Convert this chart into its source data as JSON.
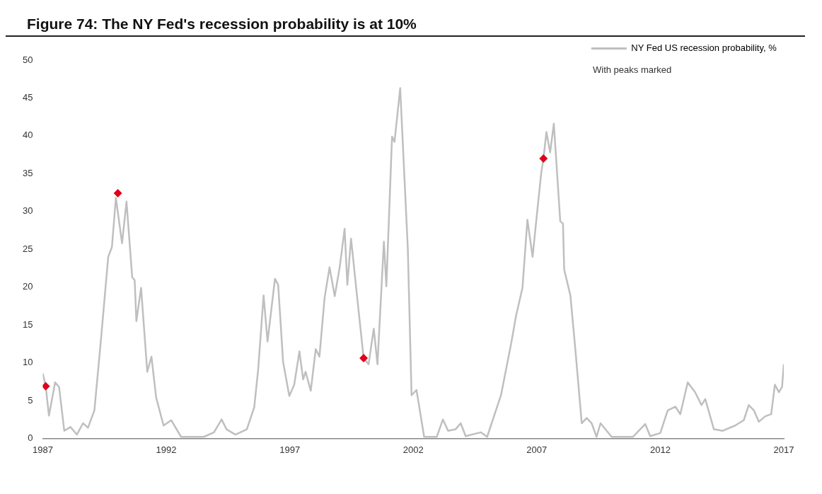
{
  "chart_data": {
    "type": "line",
    "title": "Figure 74: The NY Fed's recession probability is at 10%",
    "annotations": [
      "With peaks marked"
    ],
    "xlim": [
      1987,
      2017
    ],
    "xticks": [
      1987,
      1992,
      1997,
      2002,
      2007,
      2012,
      2017
    ],
    "ylim": [
      0,
      50
    ],
    "yticks": [
      0,
      5,
      10,
      15,
      20,
      25,
      30,
      35,
      40,
      45,
      50
    ],
    "grid": false,
    "legend": "top right",
    "series": [
      {
        "name": "NY Fed US recession probability, %",
        "color": "#bfbfbf",
        "marker": "none",
        "line_style": "solid",
        "x": [
          1987.0,
          1987.12,
          1987.25,
          1987.5,
          1987.66,
          1987.87,
          1988.12,
          1988.38,
          1988.63,
          1988.83,
          1989.09,
          1989.34,
          1989.65,
          1989.8,
          1989.96,
          1990.21,
          1990.39,
          1990.62,
          1990.72,
          1990.79,
          1990.98,
          1991.23,
          1991.4,
          1991.59,
          1991.89,
          1992.2,
          1992.6,
          1993.52,
          1993.93,
          1994.24,
          1994.44,
          1994.8,
          1995.26,
          1995.56,
          1995.72,
          1995.94,
          1996.1,
          1996.4,
          1996.53,
          1996.73,
          1996.98,
          1997.18,
          1997.39,
          1997.54,
          1997.64,
          1997.85,
          1998.05,
          1998.2,
          1998.41,
          1998.61,
          1998.82,
          1999.02,
          1999.22,
          1999.33,
          1999.48,
          1999.73,
          1999.99,
          2000.19,
          2000.4,
          2000.55,
          2000.81,
          2000.91,
          2001.14,
          2001.24,
          2001.47,
          2001.78,
          2001.93,
          2002.13,
          2002.44,
          2002.95,
          2003.2,
          2003.41,
          2003.71,
          2003.92,
          2004.12,
          2004.73,
          2004.99,
          2005.55,
          2005.96,
          2006.16,
          2006.42,
          2006.62,
          2006.83,
          2007.03,
          2007.18,
          2007.27,
          2007.39,
          2007.54,
          2007.69,
          2007.95,
          2008.06,
          2008.11,
          2008.36,
          2008.56,
          2008.82,
          2009.02,
          2009.22,
          2009.42,
          2009.58,
          2010.03,
          2010.89,
          2011.39,
          2011.59,
          2012.0,
          2012.3,
          2012.61,
          2012.81,
          2013.11,
          2013.41,
          2013.67,
          2013.82,
          2014.17,
          2014.53,
          2015.03,
          2015.38,
          2015.58,
          2015.79,
          2015.99,
          2016.24,
          2016.49,
          2016.64,
          2016.8,
          2016.93,
          2017.0
        ],
        "values": [
          8.6,
          6.9,
          3.0,
          7.4,
          6.8,
          1.0,
          1.5,
          0.5,
          2.0,
          1.4,
          3.7,
          12.5,
          24,
          25.3,
          31.8,
          25.8,
          31.3,
          21.3,
          20.9,
          15.5,
          19.9,
          8.8,
          10.8,
          5.4,
          1.7,
          2.4,
          0.2,
          0.2,
          0.8,
          2.5,
          1.2,
          0.5,
          1.2,
          4.1,
          9.1,
          18.9,
          12.8,
          21.1,
          20.3,
          10.1,
          5.6,
          7.1,
          11.5,
          7.8,
          8.8,
          6.3,
          11.8,
          10.8,
          18.6,
          22.6,
          18.8,
          22.6,
          27.7,
          20.3,
          26.4,
          18.6,
          10.6,
          9.8,
          14.5,
          9.8,
          26,
          20.1,
          39.9,
          39.2,
          46.3,
          25,
          5.7,
          6.4,
          0.2,
          0.2,
          2.5,
          1.0,
          1.2,
          2.0,
          0.3,
          0.8,
          0.2,
          5.7,
          12.5,
          16.2,
          19.9,
          28.9,
          24,
          30.4,
          35.1,
          37,
          40.5,
          37.8,
          41.6,
          28.7,
          28.4,
          22.3,
          18.9,
          11.8,
          2.0,
          2.7,
          2.0,
          0.2,
          2.0,
          0.2,
          0.2,
          1.9,
          0.3,
          0.7,
          3.7,
          4.2,
          3.2,
          7.4,
          6.1,
          4.4,
          5.2,
          1.2,
          1.0,
          1.7,
          2.4,
          4.4,
          3.7,
          2.2,
          2.9,
          3.2,
          7.1,
          6.1,
          6.8,
          9.8
        ]
      },
      {
        "type": "scatter",
        "color": "#e0001b",
        "marker": "diamond",
        "x": [
          1987.12,
          1990.04,
          1999.99,
          2007.27
        ],
        "values": [
          6.9,
          32.4,
          10.6,
          37
        ]
      }
    ]
  }
}
